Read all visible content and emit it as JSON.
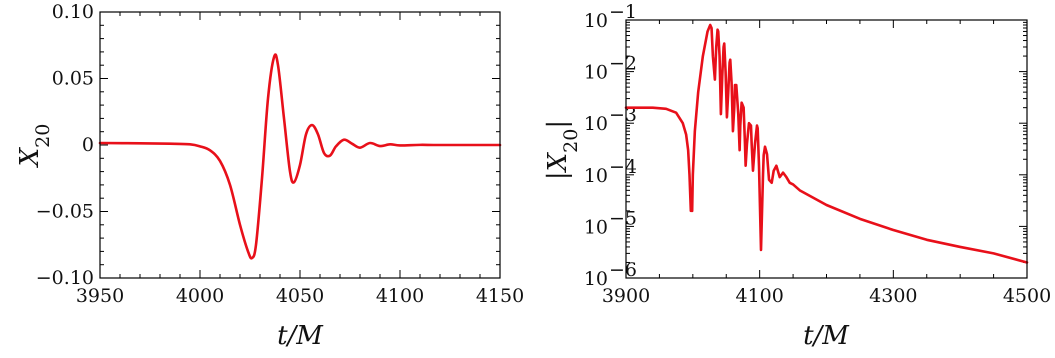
{
  "chart_data": [
    {
      "type": "line",
      "xlabel": "t/M",
      "ylabel": "X20",
      "xlim": [
        3950,
        4150
      ],
      "ylim": [
        -0.1,
        0.1
      ],
      "xticks": [
        "3950",
        "4000",
        "4050",
        "4100",
        "4150"
      ],
      "yticks": [
        "−0.10",
        "−0.05",
        "0",
        "0.05",
        "0.10"
      ],
      "line_color": "#e8101a",
      "series": [
        {
          "x": [
            3950,
            3970,
            3985,
            3995,
            4000,
            4005,
            4010,
            4015,
            4020,
            4024,
            4026,
            4028,
            4031,
            4034,
            4037,
            4039,
            4042,
            4045,
            4047,
            4050,
            4053,
            4056,
            4059,
            4062,
            4065,
            4068,
            4072,
            4076,
            4080,
            4085,
            4090,
            4095,
            4100,
            4110,
            4120,
            4150
          ],
          "y": [
            0.0015,
            0.0013,
            0.001,
            0.0005,
            -0.001,
            -0.004,
            -0.012,
            -0.03,
            -0.06,
            -0.08,
            -0.085,
            -0.075,
            -0.025,
            0.035,
            0.066,
            0.06,
            0.02,
            -0.02,
            -0.028,
            -0.015,
            0.008,
            0.015,
            0.008,
            -0.006,
            -0.008,
            -0.001,
            0.004,
            0.001,
            -0.002,
            0.0015,
            -0.0008,
            0.0005,
            -0.0003,
            0.0001,
            0.0,
            0.0
          ]
        }
      ]
    },
    {
      "type": "line",
      "xlabel": "t/M",
      "ylabel": "|X20|",
      "yscale": "log",
      "xlim": [
        3900,
        4500
      ],
      "ylim": [
        1e-06,
        0.1
      ],
      "xticks": [
        "3900",
        "4100",
        "4300",
        "4500"
      ],
      "yticks": [
        {
          "base": "10",
          "exp": "−6",
          "value": 1e-06
        },
        {
          "base": "10",
          "exp": "−5",
          "value": 1e-05
        },
        {
          "base": "10",
          "exp": "−4",
          "value": 0.0001
        },
        {
          "base": "10",
          "exp": "−3",
          "value": 0.001
        },
        {
          "base": "10",
          "exp": "−2",
          "value": 0.01
        },
        {
          "base": "10",
          "exp": "−1",
          "value": 0.1
        }
      ],
      "line_color": "#e8101a",
      "series": [
        {
          "x": [
            3900,
            3940,
            3960,
            3975,
            3985,
            3990,
            3993,
            3995,
            3997,
            3999,
            4000,
            4003,
            4008,
            4015,
            4022,
            4026,
            4028,
            4030,
            4033,
            4035,
            4037,
            4038,
            4040,
            4042,
            4044,
            4046,
            4047,
            4049,
            4051,
            4053,
            4055,
            4056,
            4058,
            4060,
            4062,
            4063,
            4065,
            4068,
            4070,
            4071,
            4073,
            4076,
            4078,
            4079,
            4081,
            4084,
            4087,
            4088,
            4090,
            4093,
            4096,
            4097,
            4099,
            4102,
            4105,
            4106,
            4108,
            4111,
            4114,
            4118,
            4121,
            4125,
            4130,
            4135,
            4140,
            4145,
            4150,
            4160,
            4200,
            4250,
            4300,
            4350,
            4400,
            4450,
            4500
          ],
          "y": [
            0.002,
            0.002,
            0.0019,
            0.0016,
            0.001,
            0.0006,
            0.0003,
            0.0001,
            2e-05,
            2e-05,
            0.0001,
            0.0007,
            0.004,
            0.02,
            0.06,
            0.08,
            0.07,
            0.02,
            0.007,
            0.03,
            0.065,
            0.06,
            0.02,
            0.0015,
            0.008,
            0.03,
            0.035,
            0.01,
            0.0013,
            0.004,
            0.015,
            0.017,
            0.006,
            0.0007,
            0.002,
            0.0055,
            0.0055,
            0.0015,
            0.0003,
            0.0009,
            0.0025,
            0.002,
            0.0004,
            0.00015,
            0.0004,
            0.001,
            0.0009,
            0.0004,
            0.00012,
            0.0004,
            0.0009,
            0.0008,
            0.00015,
            3.5e-06,
            0.0001,
            0.00024,
            0.00035,
            0.00025,
            8e-05,
            7e-05,
            0.00012,
            0.00015,
            9e-05,
            0.00011,
            9e-05,
            7e-05,
            6.5e-05,
            5e-05,
            2.6e-05,
            1.4e-05,
            8.5e-06,
            5.5e-06,
            4e-06,
            3e-06,
            2e-06
          ]
        }
      ]
    }
  ]
}
